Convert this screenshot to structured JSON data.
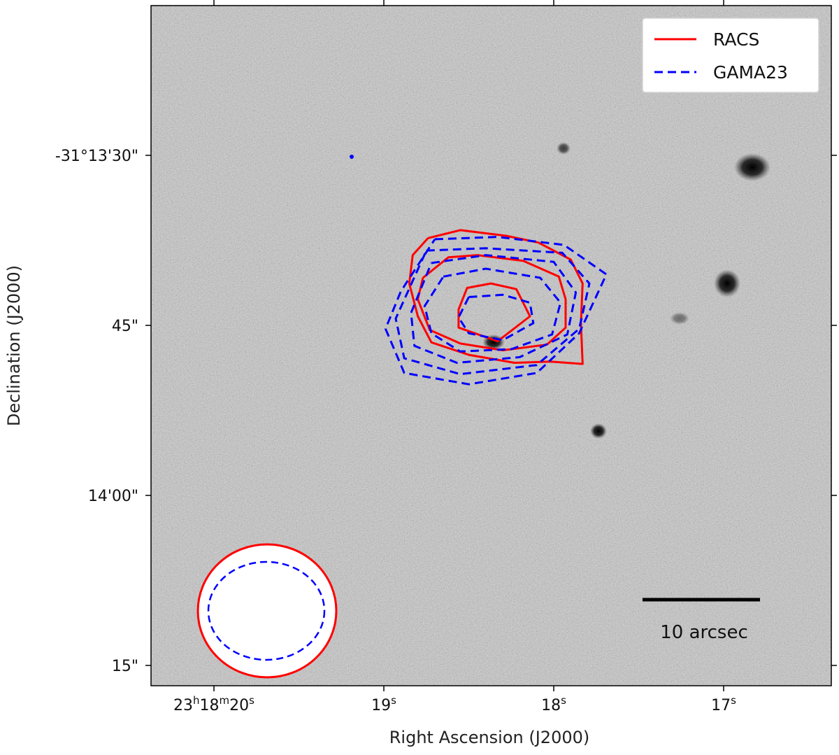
{
  "chart_data": {
    "type": "contour",
    "xlabel": "Right Ascension (J2000)",
    "ylabel": "Declination (J2000)",
    "x_ticks": [
      {
        "ra_sec": 20,
        "h": "23",
        "m": "18",
        "s": "20"
      },
      {
        "ra_sec": 19,
        "s": "19"
      },
      {
        "ra_sec": 18,
        "s": "18"
      },
      {
        "ra_sec": 17,
        "s": "17"
      }
    ],
    "y_ticks": [
      {
        "dec_sec": 30,
        "label": "-31°13'30\""
      },
      {
        "dec_sec": 45,
        "label": "45\""
      },
      {
        "dec_sec": 60,
        "label": "14'00\""
      },
      {
        "dec_sec": 75,
        "label": "15\""
      }
    ],
    "xlim_ra_sec": [
      20.5,
      16.5
    ],
    "ylim_dec_sec": [
      17,
      78
    ],
    "background": "greyscale optical image",
    "legend": {
      "placement": "top-right",
      "entries": [
        {
          "name": "RACS",
          "color": "#ff0000",
          "style": "solid"
        },
        {
          "name": "GAMA23",
          "color": "#0000ff",
          "style": "dashed"
        }
      ]
    },
    "contours": [
      {
        "series": "RACS",
        "color": "#ff0000",
        "style": "solid",
        "levels": [
          {
            "points": [
              [
                18.56,
                43.6
              ],
              [
                18.51,
                41.7
              ],
              [
                18.37,
                41.3
              ],
              [
                18.22,
                41.8
              ],
              [
                18.14,
                44.2
              ],
              [
                18.33,
                46.4
              ],
              [
                18.56,
                45.2
              ],
              [
                18.56,
                43.6
              ]
            ]
          },
          {
            "points": [
              [
                18.77,
                40.8
              ],
              [
                18.62,
                39.0
              ],
              [
                18.45,
                38.8
              ],
              [
                18.18,
                39.3
              ],
              [
                17.97,
                40.7
              ],
              [
                17.93,
                42.7
              ],
              [
                17.93,
                45.2
              ],
              [
                18.04,
                46.7
              ],
              [
                18.3,
                47.2
              ],
              [
                18.55,
                46.6
              ],
              [
                18.73,
                45.4
              ],
              [
                18.8,
                42.7
              ],
              [
                18.77,
                40.8
              ]
            ]
          },
          {
            "points": [
              [
                18.74,
                37.3
              ],
              [
                18.55,
                36.6
              ],
              [
                18.28,
                37.1
              ],
              [
                18.09,
                37.7
              ],
              [
                17.9,
                39.2
              ],
              [
                17.83,
                41.3
              ],
              [
                17.84,
                44.8
              ],
              [
                17.83,
                48.4
              ],
              [
                18.02,
                48.2
              ],
              [
                18.23,
                48.3
              ],
              [
                18.5,
                47.6
              ],
              [
                18.72,
                46.5
              ],
              [
                18.8,
                44.2
              ],
              [
                18.85,
                41.3
              ],
              [
                18.83,
                38.8
              ],
              [
                18.74,
                37.3
              ]
            ]
          }
        ]
      },
      {
        "series": "GAMA23",
        "color": "#0000ff",
        "style": "dashed",
        "levels": [
          {
            "points": [
              [
                18.5,
                42.5
              ],
              [
                18.3,
                42.3
              ],
              [
                18.14,
                43.0
              ],
              [
                18.12,
                44.8
              ],
              [
                18.3,
                46.3
              ],
              [
                18.5,
                45.7
              ],
              [
                18.56,
                44.3
              ],
              [
                18.5,
                42.5
              ]
            ]
          },
          {
            "points": [
              [
                18.65,
                40.7
              ],
              [
                18.4,
                40.0
              ],
              [
                18.08,
                40.8
              ],
              [
                17.96,
                43.0
              ],
              [
                18.01,
                45.8
              ],
              [
                18.25,
                47.1
              ],
              [
                18.55,
                47.3
              ],
              [
                18.72,
                45.7
              ],
              [
                18.76,
                43.3
              ],
              [
                18.65,
                40.7
              ]
            ]
          },
          {
            "points": [
              [
                18.72,
                39.5
              ],
              [
                18.4,
                38.8
              ],
              [
                18.0,
                39.4
              ],
              [
                17.87,
                42.1
              ],
              [
                17.92,
                45.8
              ],
              [
                18.2,
                47.8
              ],
              [
                18.57,
                48.3
              ],
              [
                18.82,
                46.8
              ],
              [
                18.84,
                43.9
              ],
              [
                18.72,
                39.5
              ]
            ]
          },
          {
            "points": [
              [
                18.75,
                38.4
              ],
              [
                18.4,
                38.2
              ],
              [
                17.95,
                38.6
              ],
              [
                17.79,
                41.3
              ],
              [
                17.85,
                45.3
              ],
              [
                18.1,
                48.5
              ],
              [
                18.55,
                49.3
              ],
              [
                18.88,
                47.9
              ],
              [
                18.93,
                44.4
              ],
              [
                18.75,
                38.4
              ]
            ]
          },
          {
            "points": [
              [
                18.7,
                37.4
              ],
              [
                18.33,
                37.2
              ],
              [
                17.94,
                37.9
              ],
              [
                17.69,
                40.5
              ],
              [
                17.85,
                45.7
              ],
              [
                18.1,
                49.2
              ],
              [
                18.5,
                50.2
              ],
              [
                18.88,
                49.2
              ],
              [
                18.99,
                45.3
              ],
              [
                18.9,
                42.0
              ],
              [
                18.7,
                37.4
              ]
            ]
          }
        ]
      }
    ],
    "beam_ellipses": [
      {
        "series": "RACS",
        "color": "#ff0000",
        "style": "solid"
      },
      {
        "series": "GAMA23",
        "color": "#0000ff",
        "style": "dashed"
      }
    ],
    "scale_bar": {
      "label": "10 arcsec",
      "length_arcsec": 10
    }
  }
}
